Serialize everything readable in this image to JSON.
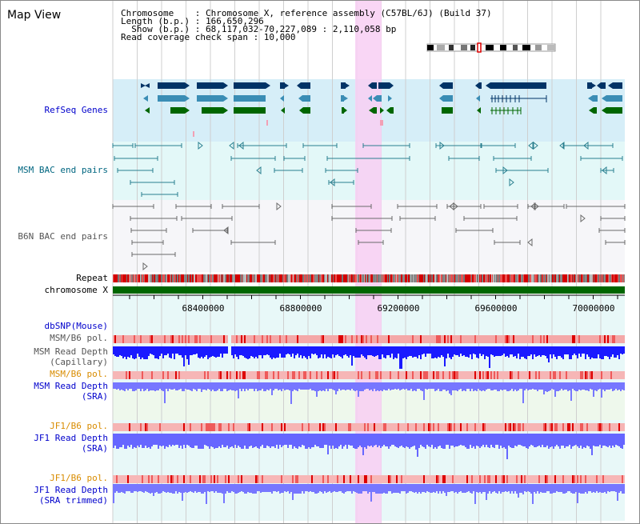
{
  "title": "Map View",
  "info": {
    "chromosome": "Chromosome    : Chromosome X, reference assembly (C57BL/6J) (Build 37)",
    "length": "Length (b.p.) : 166,650,296",
    "show": "  Show (b.p.) : 68,117,032-70,227,089 : 2,110,058 bp",
    "coverage": "Read coverage check span : 10,000"
  },
  "tracks": {
    "refseq": "RefSeq Genes",
    "msm_bac": "MSM BAC end pairs",
    "b6n_bac": "B6N BAC end pairs",
    "repeat": "Repeat",
    "chromosome": "chromosome X",
    "dbsnp": "dbSNP(Mouse)",
    "msm_b6_pol_1": "MSM/B6 pol.",
    "msm_depth_cap_1": "MSM Read Depth",
    "msm_depth_cap_2": "(Capillary)",
    "msm_b6_pol_2": "MSM/B6 pol.",
    "msm_depth_sra_1": "MSM Read Depth",
    "msm_depth_sra_2": "(SRA)",
    "jf1_b6_pol_1": "JF1/B6 pol.",
    "jf1_depth_sra_1": "JF1 Read Depth",
    "jf1_depth_sra_2": "(SRA)",
    "jf1_b6_pol_2": "JF1/B6 pol.",
    "jf1_depth_trim_1": "JF1 Read Depth",
    "jf1_depth_trim_2": "(SRA trimmed)"
  },
  "axis_ticks": [
    "68400000",
    "68800000",
    "69200000",
    "69600000",
    "70000000"
  ],
  "colors": {
    "label_blue": "#0000cc",
    "label_teal": "#006680",
    "label_gray": "#555555",
    "label_orange": "#d98c00",
    "label_black": "#000000",
    "highlight": "#f7d7f3",
    "gene_dark": "#003366",
    "gene_mid": "#3a8db5",
    "gene_green": "#006600",
    "bac_teal": "#2a7f8f",
    "bac_gray": "#6a6a6a",
    "chrom_green": "#006600",
    "depth_blue": "#1a1aff",
    "depth_light": "#7777ff"
  }
}
